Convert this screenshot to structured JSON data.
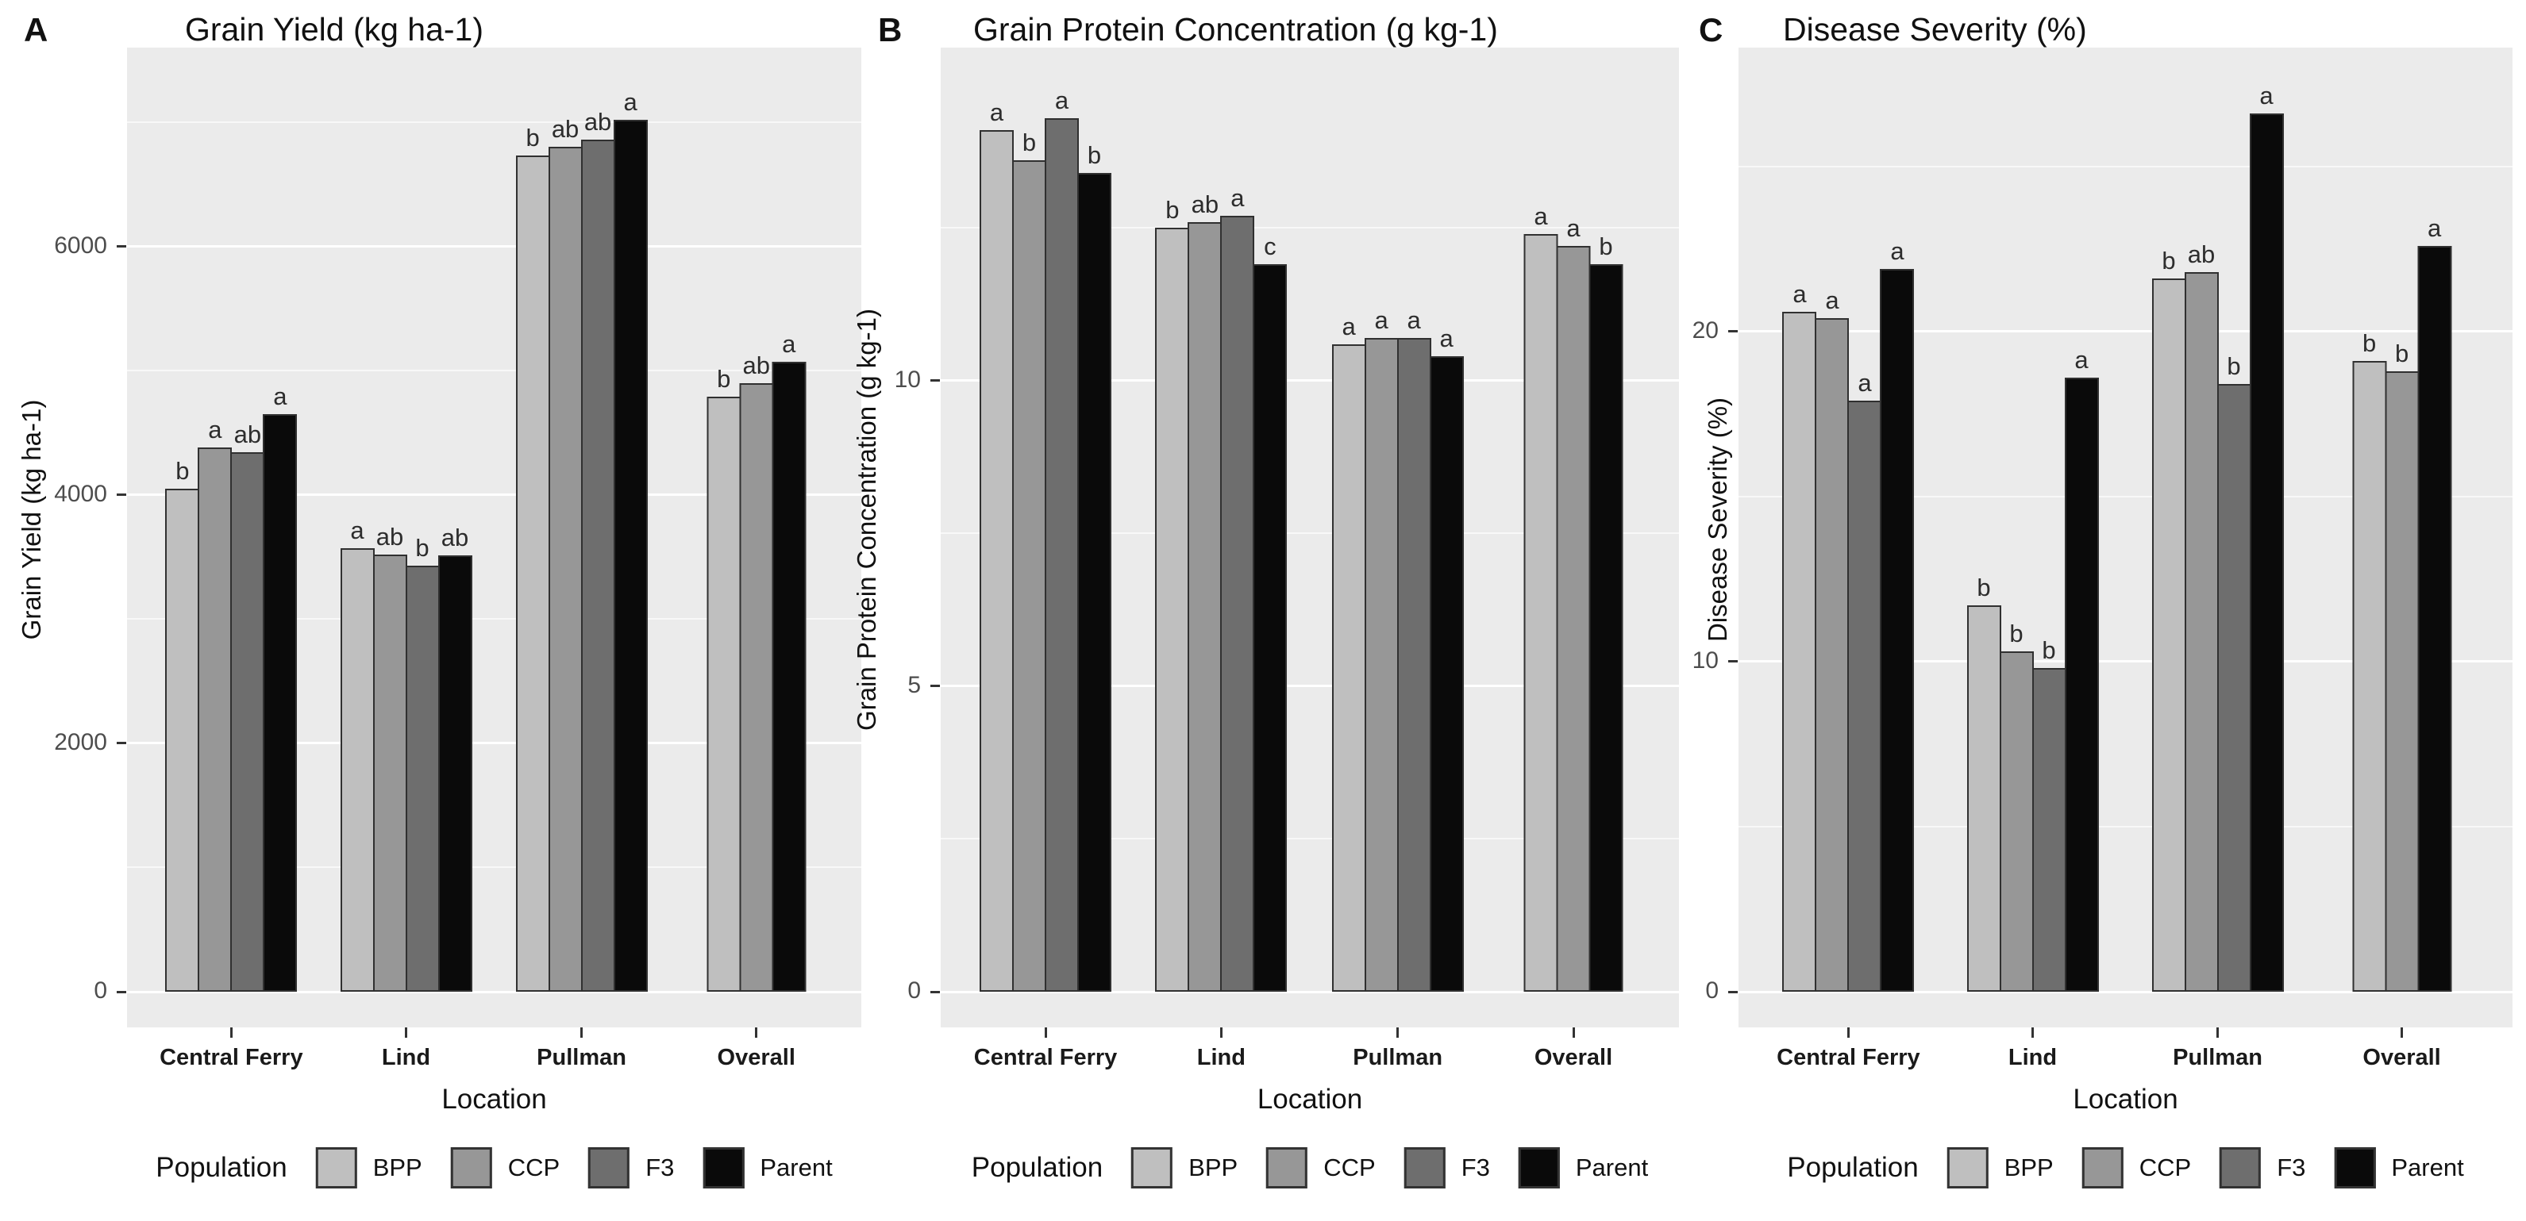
{
  "figure_title": "Population performance by location",
  "population_colors": {
    "BPP": "#BFBFBF",
    "CCP": "#979797",
    "F3": "#6E6E6E",
    "Parent": "#0A0A0A"
  },
  "legend": {
    "title": "Population",
    "items": [
      "BPP",
      "CCP",
      "F3",
      "Parent"
    ]
  },
  "chart_data": [
    {
      "type": "bar",
      "panel_letter": "A",
      "title": "Grain Yield (kg ha-1)",
      "ylabel": "Grain Yield (kg ha-1)",
      "xlabel": "Location",
      "categories": [
        "Central Ferry",
        "Lind",
        "Pullman",
        "Overall"
      ],
      "yticks": [
        0,
        2000,
        4000,
        6000
      ],
      "minor_ticks": [
        1000,
        3000,
        5000,
        7000
      ],
      "ylim": [
        0,
        7600
      ],
      "grid": "on",
      "legend_position": "bottom",
      "series": [
        {
          "name": "BPP",
          "values": [
            4050,
            3570,
            6730,
            4790
          ],
          "letters": [
            "b",
            "a",
            "b",
            "b"
          ]
        },
        {
          "name": "CCP",
          "values": [
            4380,
            3520,
            6800,
            4900
          ],
          "letters": [
            "a",
            "ab",
            "ab",
            "ab"
          ]
        },
        {
          "name": "F3",
          "values": [
            4340,
            3430,
            6860,
            null
          ],
          "letters": [
            "ab",
            "b",
            "ab",
            null
          ]
        },
        {
          "name": "Parent",
          "values": [
            4650,
            3510,
            7020,
            5070
          ],
          "letters": [
            "a",
            "ab",
            "a",
            "a"
          ]
        }
      ]
    },
    {
      "type": "bar",
      "panel_letter": "B",
      "title": "Grain Protein Concentration (g kg-1)",
      "ylabel": "Grain Protein Concentration (g kg-1)",
      "xlabel": "Location",
      "categories": [
        "Central Ferry",
        "Lind",
        "Pullman",
        "Overall"
      ],
      "yticks": [
        0,
        5,
        10
      ],
      "minor_ticks": [
        2.5,
        7.5,
        12.5
      ],
      "ylim": [
        0,
        15.45
      ],
      "grid": "on",
      "legend_position": "bottom",
      "series": [
        {
          "name": "BPP",
          "values": [
            14.1,
            12.5,
            10.6,
            12.4
          ],
          "letters": [
            "a",
            "b",
            "a",
            "a"
          ]
        },
        {
          "name": "CCP",
          "values": [
            13.6,
            12.6,
            10.7,
            12.2
          ],
          "letters": [
            "b",
            "ab",
            "a",
            "a"
          ]
        },
        {
          "name": "F3",
          "values": [
            14.3,
            12.7,
            10.7,
            null
          ],
          "letters": [
            "a",
            "a",
            "a",
            null
          ]
        },
        {
          "name": "Parent",
          "values": [
            13.4,
            11.9,
            10.4,
            11.9
          ],
          "letters": [
            "b",
            "c",
            "a",
            "b"
          ]
        }
      ]
    },
    {
      "type": "bar",
      "panel_letter": "C",
      "title": "Disease Severity (%)",
      "ylabel": "Disease Severity (%)",
      "xlabel": "Location",
      "categories": [
        "Central Ferry",
        "Lind",
        "Pullman",
        "Overall"
      ],
      "yticks": [
        0,
        10,
        20
      ],
      "minor_ticks": [
        5,
        15,
        25
      ],
      "ylim": [
        0,
        28.6
      ],
      "grid": "on",
      "legend_position": "bottom",
      "series": [
        {
          "name": "BPP",
          "values": [
            20.6,
            11.7,
            21.6,
            19.1
          ],
          "letters": [
            "a",
            "b",
            "b",
            "b"
          ]
        },
        {
          "name": "CCP",
          "values": [
            20.4,
            10.3,
            21.8,
            18.8
          ],
          "letters": [
            "a",
            "b",
            "ab",
            "b"
          ]
        },
        {
          "name": "F3",
          "values": [
            17.9,
            9.8,
            18.4,
            null
          ],
          "letters": [
            "a",
            "b",
            "b",
            null
          ]
        },
        {
          "name": "Parent",
          "values": [
            21.9,
            18.6,
            26.6,
            22.6
          ],
          "letters": [
            "a",
            "a",
            "a",
            "a"
          ]
        }
      ]
    }
  ]
}
